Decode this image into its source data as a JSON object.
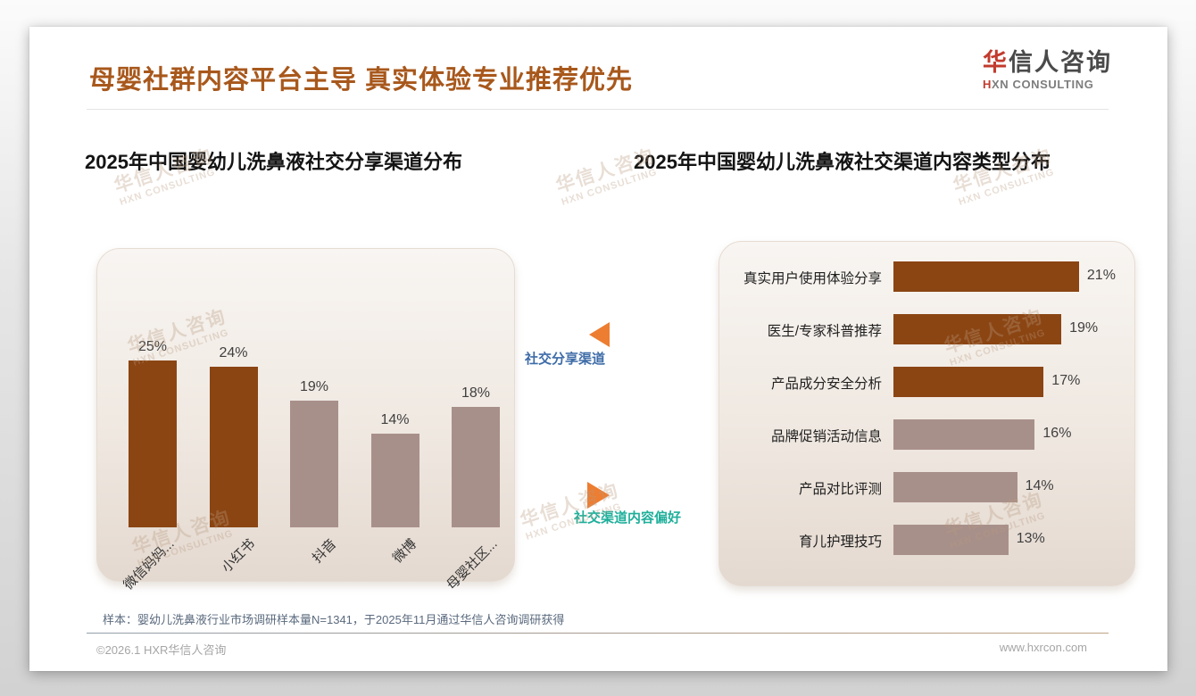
{
  "page": {
    "main_title": "母婴社群内容平台主导 真实体验专业推荐优先",
    "logo": {
      "zh_accent": "华",
      "zh_rest": "信人咨询",
      "en_accent": "H",
      "en_rest": "XN CONSULTING"
    },
    "watermark": {
      "line1": "华信人咨询",
      "line2": "HXN CONSULTING"
    },
    "footnote": "样本：婴幼儿洗鼻液行业市场调研样本量N=1341，于2025年11月通过华信人咨询调研获得",
    "copyright": "©2026.1 HXR华信人咨询",
    "website": "www.hxrcon.com"
  },
  "annotations": {
    "share_channel_tag": "社交分享渠道",
    "content_preference_tag": "社交渠道内容偏好"
  },
  "colors": {
    "title_brown": "#A8581C",
    "dark_bar": "#8B4513",
    "light_bar": "#A8908A",
    "arrow_orange": "#ED7D31",
    "share_tag_blue": "#3E6CA8",
    "content_tag_teal": "#1FAF9B",
    "logo_red": "#C23B2E"
  },
  "chart_data": [
    {
      "type": "bar",
      "orientation": "vertical",
      "title": "2025年中国婴幼儿洗鼻液社交分享渠道分布",
      "categories": [
        "微信妈妈...",
        "小红书",
        "抖音",
        "微博",
        "母婴社区..."
      ],
      "values": [
        25,
        24,
        19,
        14,
        18
      ],
      "value_labels": [
        "25%",
        "24%",
        "19%",
        "14%",
        "18%"
      ],
      "value_unit": "%",
      "bar_colors": [
        "#8B4513",
        "#8B4513",
        "#A8908A",
        "#A8908A",
        "#A8908A"
      ],
      "ylim": [
        0,
        28
      ],
      "grid": false,
      "legend": "none",
      "x_tick_rotation": -45
    },
    {
      "type": "bar",
      "orientation": "horizontal",
      "title": "2025年中国婴幼儿洗鼻液社交渠道内容类型分布",
      "categories": [
        "真实用户使用体验分享",
        "医生/专家科普推荐",
        "产品成分安全分析",
        "品牌促销活动信息",
        "产品对比评测",
        "育儿护理技巧"
      ],
      "values": [
        21,
        19,
        17,
        16,
        14,
        13
      ],
      "value_labels": [
        "21%",
        "19%",
        "17%",
        "16%",
        "14%",
        "13%"
      ],
      "value_unit": "%",
      "bar_colors": [
        "#8B4513",
        "#8B4513",
        "#8B4513",
        "#A8908A",
        "#A8908A",
        "#A8908A"
      ],
      "xlim": [
        0,
        23
      ],
      "grid": false,
      "legend": "none"
    }
  ]
}
